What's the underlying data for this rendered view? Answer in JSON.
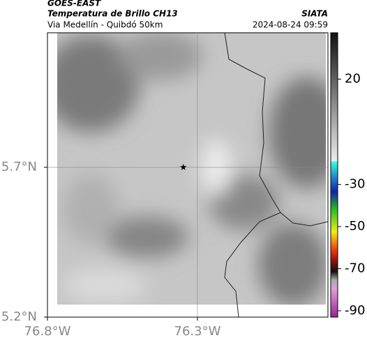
{
  "header": {
    "satellite": "GOES-EAST",
    "product": "Temperatura de Brillo CH13",
    "region": "Via Medellín - Quibdó 50km",
    "source": "SIATA",
    "timestamp": "2024-08-24 09:59"
  },
  "map": {
    "xlim": [
      -76.8,
      -75.865
    ],
    "ylim": [
      5.2,
      6.149
    ],
    "xticks": [
      {
        "value": -76.8,
        "label": "76.8°W"
      },
      {
        "value": -76.3,
        "label": "76.3°W"
      }
    ],
    "yticks": [
      {
        "value": 5.7,
        "label": "5.7°N"
      },
      {
        "value": 5.2,
        "label": "5.2°N"
      }
    ],
    "grid": true,
    "marker": {
      "lon": -76.347,
      "lat": 5.7
    }
  },
  "colorbar": {
    "lim": [
      42,
      -93
    ],
    "ticks": [
      20,
      -30,
      -50,
      -70,
      -90
    ]
  }
}
